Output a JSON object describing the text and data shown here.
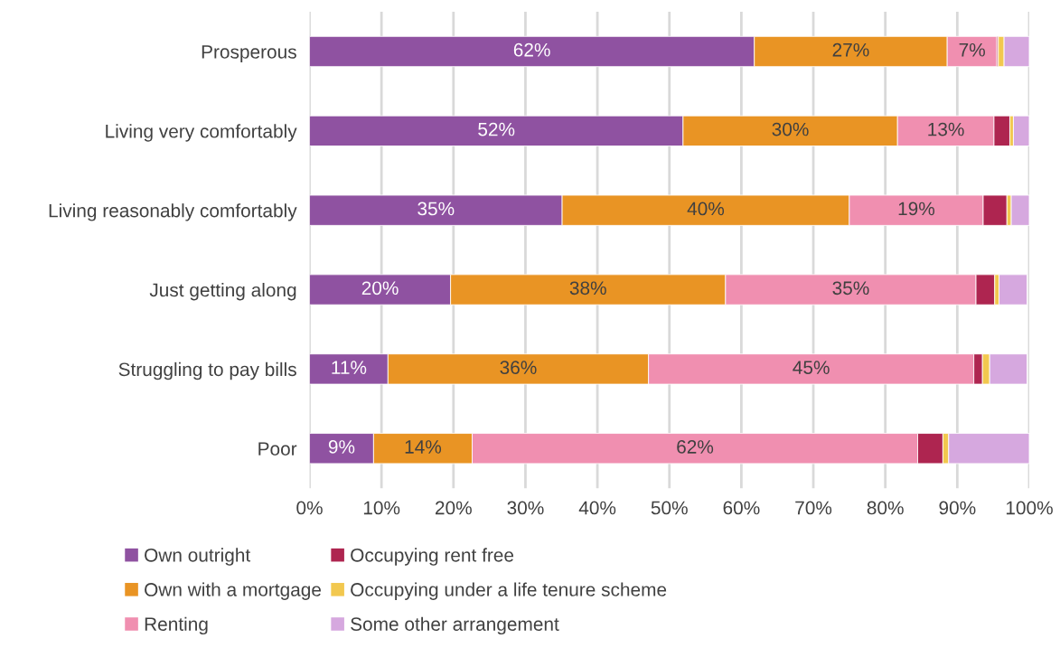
{
  "chart_data": {
    "type": "bar",
    "orientation": "horizontal",
    "stacked": true,
    "categories": [
      "Prosperous",
      "Living very comfortably",
      "Living reasonably comfortably",
      "Just getting along",
      "Struggling to pay bills",
      "Poor"
    ],
    "series": [
      {
        "name": "Own outright",
        "color": "#8f52a1",
        "values": [
          61.8,
          51.9,
          35.1,
          19.6,
          10.9,
          8.9
        ],
        "value_labels": [
          "62%",
          "52%",
          "35%",
          "20%",
          "11%",
          "9%"
        ]
      },
      {
        "name": "Own with a mortgage",
        "color": "#e99424",
        "values": [
          26.8,
          29.8,
          39.9,
          38.2,
          36.2,
          13.7
        ],
        "value_labels": [
          "27%",
          "30%",
          "40%",
          "38%",
          "36%",
          "14%"
        ]
      },
      {
        "name": "Renting",
        "color": "#f08fb0",
        "values": [
          6.9,
          13.4,
          18.6,
          34.8,
          45.2,
          61.9
        ],
        "value_labels": [
          "7%",
          "13%",
          "19%",
          "35%",
          "45%",
          "62%"
        ]
      },
      {
        "name": "Occupying rent free",
        "color": "#ae2550",
        "values": [
          0.2,
          2.2,
          3.3,
          2.6,
          1.2,
          3.5
        ]
      },
      {
        "name": "Occupying under a life tenure scheme",
        "color": "#f2c84f",
        "values": [
          0.8,
          0.5,
          0.6,
          0.6,
          1.0,
          0.8
        ]
      },
      {
        "name": "Some other arrangement",
        "color": "#d6a8df",
        "values": [
          3.5,
          2.2,
          2.5,
          3.9,
          5.2,
          11.2
        ]
      }
    ],
    "xlim": [
      0,
      100
    ],
    "xticks": [
      {
        "value": 0,
        "label": "0%"
      },
      {
        "value": 10,
        "label": "10%"
      },
      {
        "value": 20,
        "label": "20%"
      },
      {
        "value": 30,
        "label": "30%"
      },
      {
        "value": 40,
        "label": "40%"
      },
      {
        "value": 50,
        "label": "50%"
      },
      {
        "value": 60,
        "label": "60%"
      },
      {
        "value": 70,
        "label": "70%"
      },
      {
        "value": 80,
        "label": "80%"
      },
      {
        "value": 90,
        "label": "90%"
      },
      {
        "value": 100,
        "label": "100%"
      }
    ],
    "grid": "x",
    "legend": "bottom"
  }
}
